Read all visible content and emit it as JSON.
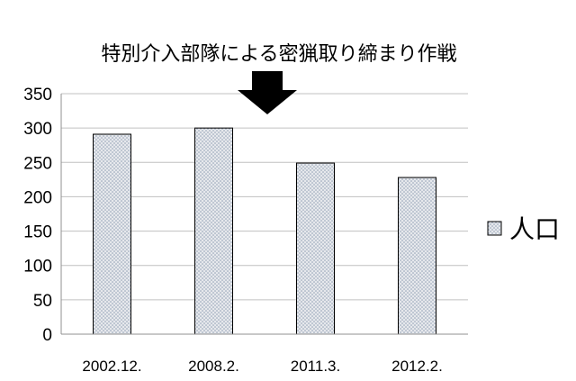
{
  "chart_data": {
    "type": "bar",
    "title": "",
    "annotation": "特別介入部隊による密猟取り締まり作戦",
    "annotation_marker": "down-arrow-icon",
    "categories": [
      "2002.12.",
      "2008.2.",
      "2011.3.",
      "2012.2."
    ],
    "series": [
      {
        "name": "人口",
        "values": [
          291,
          300,
          249,
          228
        ]
      }
    ],
    "ylim": [
      0,
      350
    ],
    "yticks": [
      0,
      50,
      100,
      150,
      200,
      250,
      300,
      350
    ],
    "xlabel": "",
    "ylabel": "",
    "grid": true,
    "legend": "right",
    "bar_fill": "#e6e8ec",
    "bar_dot_color": "#8a9ab0",
    "bar_stroke": "#000000",
    "grid_color": "#c0c0c0"
  }
}
